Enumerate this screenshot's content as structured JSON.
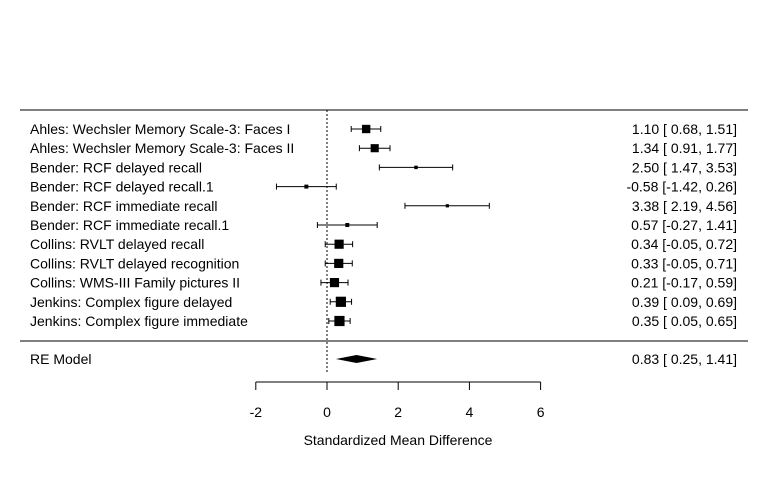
{
  "chart_data": {
    "type": "forest",
    "xlabel": "Standardized Mean Difference",
    "xlim": [
      -2,
      6
    ],
    "xticks": [
      -2,
      0,
      2,
      4,
      6
    ],
    "reference_line": 0,
    "studies": [
      {
        "label": "Ahles: Wechsler Memory Scale-3: Faces I",
        "estimate": 1.1,
        "lower": 0.68,
        "upper": 1.51,
        "ci_text": "1.10 [ 0.68, 1.51]",
        "weight": 2.3
      },
      {
        "label": "Ahles: Wechsler Memory Scale-3: Faces II",
        "estimate": 1.34,
        "lower": 0.91,
        "upper": 1.77,
        "ci_text": "1.34 [ 0.91, 1.77]",
        "weight": 2.2
      },
      {
        "label": "Bender: RCF delayed recall",
        "estimate": 2.5,
        "lower": 1.47,
        "upper": 3.53,
        "ci_text": "2.50 [ 1.47, 3.53]",
        "weight": 0.4
      },
      {
        "label": "Bender: RCF delayed recall.1",
        "estimate": -0.58,
        "lower": -1.42,
        "upper": 0.26,
        "ci_text": "-0.58 [-1.42, 0.26]",
        "weight": 0.6
      },
      {
        "label": "Bender: RCF immediate recall",
        "estimate": 3.38,
        "lower": 2.19,
        "upper": 4.56,
        "ci_text": "3.38 [ 2.19, 4.56]",
        "weight": 0.3
      },
      {
        "label": "Bender: RCF immediate recall.1",
        "estimate": 0.57,
        "lower": -0.27,
        "upper": 1.41,
        "ci_text": "0.57 [-0.27, 1.41]",
        "weight": 0.6
      },
      {
        "label": "Collins: RVLT delayed recall",
        "estimate": 0.34,
        "lower": -0.05,
        "upper": 0.72,
        "ci_text": "0.34 [-0.05, 0.72]",
        "weight": 2.6
      },
      {
        "label": "Collins: RVLT delayed recognition",
        "estimate": 0.33,
        "lower": -0.05,
        "upper": 0.71,
        "ci_text": "0.33 [-0.05, 0.71]",
        "weight": 2.6
      },
      {
        "label": "Collins: WMS-III Family pictures II",
        "estimate": 0.21,
        "lower": -0.17,
        "upper": 0.59,
        "ci_text": "0.21 [-0.17, 0.59]",
        "weight": 2.6
      },
      {
        "label": "Jenkins: Complex figure delayed",
        "estimate": 0.39,
        "lower": 0.09,
        "upper": 0.69,
        "ci_text": "0.39 [ 0.09, 0.69]",
        "weight": 3.0
      },
      {
        "label": "Jenkins: Complex figure immediate",
        "estimate": 0.35,
        "lower": 0.05,
        "upper": 0.65,
        "ci_text": "0.35 [ 0.05, 0.65]",
        "weight": 3.0
      }
    ],
    "summary": {
      "label": "RE Model",
      "estimate": 0.83,
      "lower": 0.25,
      "upper": 1.41,
      "ci_text": "0.83 [ 0.25, 1.41]"
    }
  }
}
